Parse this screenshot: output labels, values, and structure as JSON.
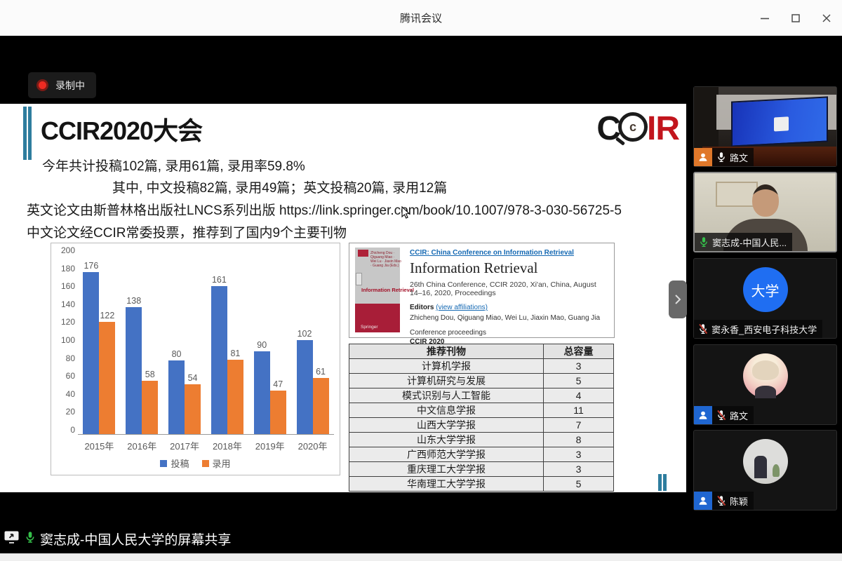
{
  "window": {
    "title": "腾讯会议"
  },
  "recording": {
    "label": "录制中"
  },
  "slide": {
    "title": "CCIR2020大会",
    "logo": {
      "c": "C",
      "glass_c": "c",
      "ir": "IR"
    },
    "lines": [
      "今年共计投稿102篇, 录用61篇, 录用率59.8%",
      "其中, 中文投稿82篇, 录用49篇；英文投稿20篇, 录用12篇",
      "英文论文由斯普林格出版社LNCS系列出版 https://link.springer.com/book/10.1007/978-3-030-56725-5",
      "中文论文经CCIR常委投票，推荐到了国内9个主要刊物"
    ],
    "book": {
      "series_link": "CCIR: China Conference on Information Retrieval",
      "title": "Information Retrieval",
      "subtitle": "26th China Conference, CCIR 2020, Xi'an, China, August 14–16, 2020, Proceedings",
      "editors_label": "Editors",
      "editors_link": "(view affiliations)",
      "editors": "Zhicheng Dou, Qiguang Miao, Wei Lu, Jiaxin Mao, Guang Jia",
      "proceedings_label": "Conference proceedings",
      "proceedings_value": "CCIR 2020",
      "cover": {
        "authors": "Zhicheng Dou · Qiguang Miao · Wei Lu · Jiaxin Mao · Guang Jia (Eds.)",
        "title": "Information Retrieval",
        "publisher": "Springer"
      }
    },
    "journal_table": {
      "headers": [
        "推荐刊物",
        "总容量"
      ],
      "rows": [
        [
          "计算机学报",
          "3"
        ],
        [
          "计算机研究与发展",
          "5"
        ],
        [
          "模式识别与人工智能",
          "4"
        ],
        [
          "中文信息学报",
          "11"
        ],
        [
          "山西大学学报",
          "7"
        ],
        [
          "山东大学学报",
          "8"
        ],
        [
          "广西师范大学学报",
          "3"
        ],
        [
          "重庆理工大学学报",
          "3"
        ],
        [
          "华南理工大学学报",
          "5"
        ]
      ]
    }
  },
  "chart_data": {
    "type": "bar",
    "categories": [
      "2015年",
      "2016年",
      "2017年",
      "2018年",
      "2019年",
      "2020年"
    ],
    "series": [
      {
        "name": "投稿",
        "color": "#4472c4",
        "values": [
          176,
          138,
          80,
          161,
          90,
          102
        ]
      },
      {
        "name": "录用",
        "color": "#ed7d31",
        "values": [
          122,
          58,
          54,
          81,
          47,
          61
        ]
      }
    ],
    "title": "",
    "xlabel": "",
    "ylabel": "",
    "ylim": [
      0,
      200
    ],
    "yticks": [
      0,
      20,
      40,
      60,
      80,
      100,
      120,
      140,
      160,
      180,
      200
    ],
    "grid": false,
    "legend_position": "bottom"
  },
  "sidebar": {
    "participants": [
      {
        "name": "路文",
        "mic": "on",
        "badge": "orange",
        "avatar": "room-video",
        "active": false
      },
      {
        "name": "窦志成-中国人民...",
        "mic": "speaking",
        "badge": null,
        "avatar": "person-video",
        "active": true
      },
      {
        "name": "窦永香_西安电子科技大学",
        "mic": "muted",
        "badge": null,
        "avatar": "initials",
        "avatar_text": "大学",
        "active": false
      },
      {
        "name": "路文",
        "mic": "muted",
        "badge": "blue",
        "avatar": "anime",
        "active": false
      },
      {
        "name": "陈颖",
        "mic": "muted",
        "badge": "blue",
        "avatar": "photo",
        "active": false
      }
    ]
  },
  "bottom_bar": {
    "share_text": "窦志成-中国人民大学的屏幕共享"
  },
  "colors": {
    "deco_teal": "#2e7d9e",
    "logo_red": "#c2151d",
    "link_blue": "#1569b3",
    "record_red": "#ee2b22",
    "mic_green": "#35c04a",
    "mute_red": "#c43a2e",
    "badge_orange": "#e0782a",
    "badge_blue": "#1f66d1",
    "bar_blue": "#4472c4",
    "bar_orange": "#ed7d31"
  }
}
